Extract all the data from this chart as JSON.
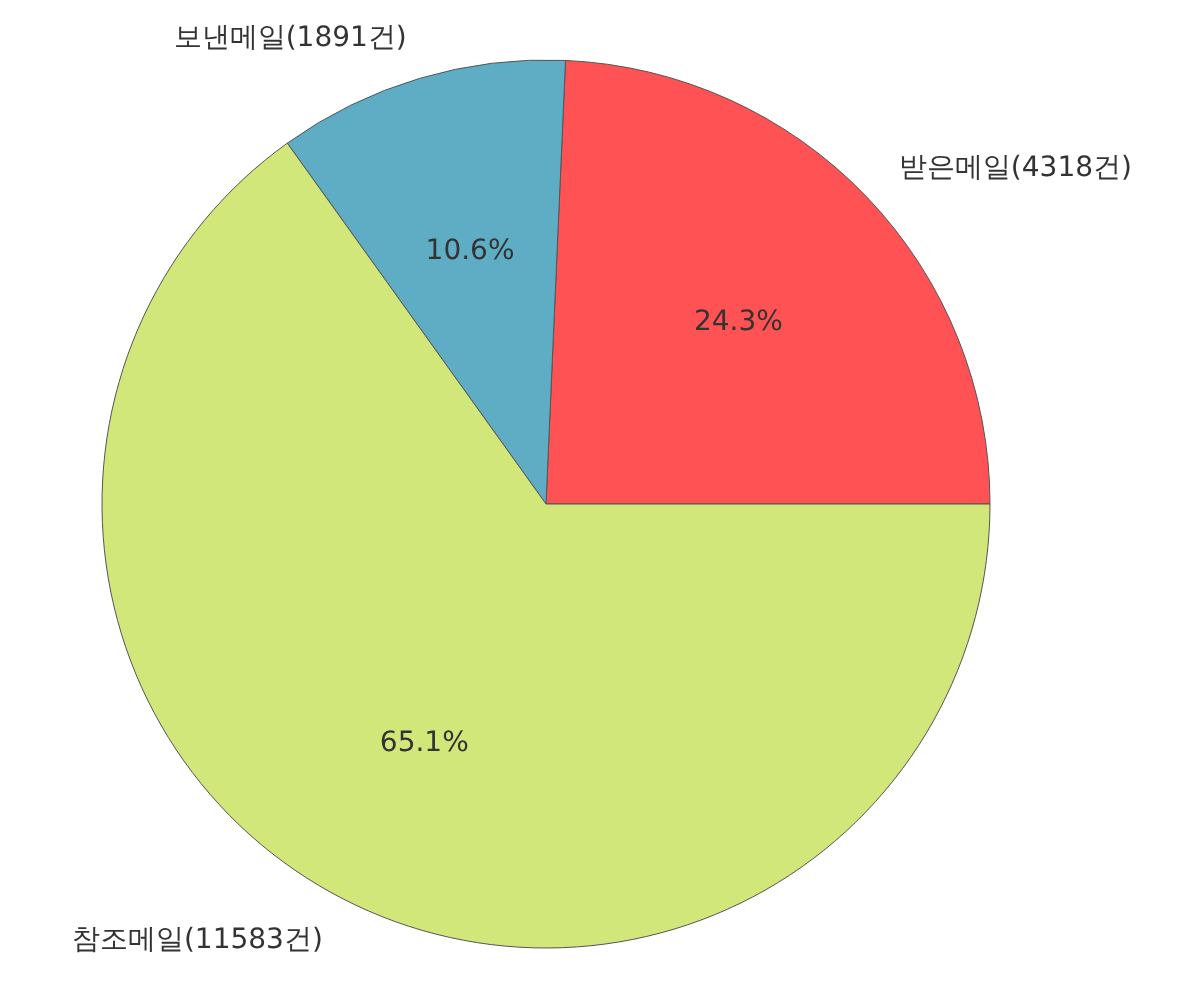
{
  "chart_data": {
    "type": "pie",
    "categories": [
      "받은메일(4318건)",
      "보낸메일(1891건)",
      "참조메일(11583건)"
    ],
    "values": [
      24.3,
      10.6,
      65.1
    ],
    "colors": [
      "#ff5254",
      "#5eadc5",
      "#d1e77a"
    ],
    "value_labels": [
      "24.3%",
      "10.6%",
      "65.1%"
    ]
  }
}
